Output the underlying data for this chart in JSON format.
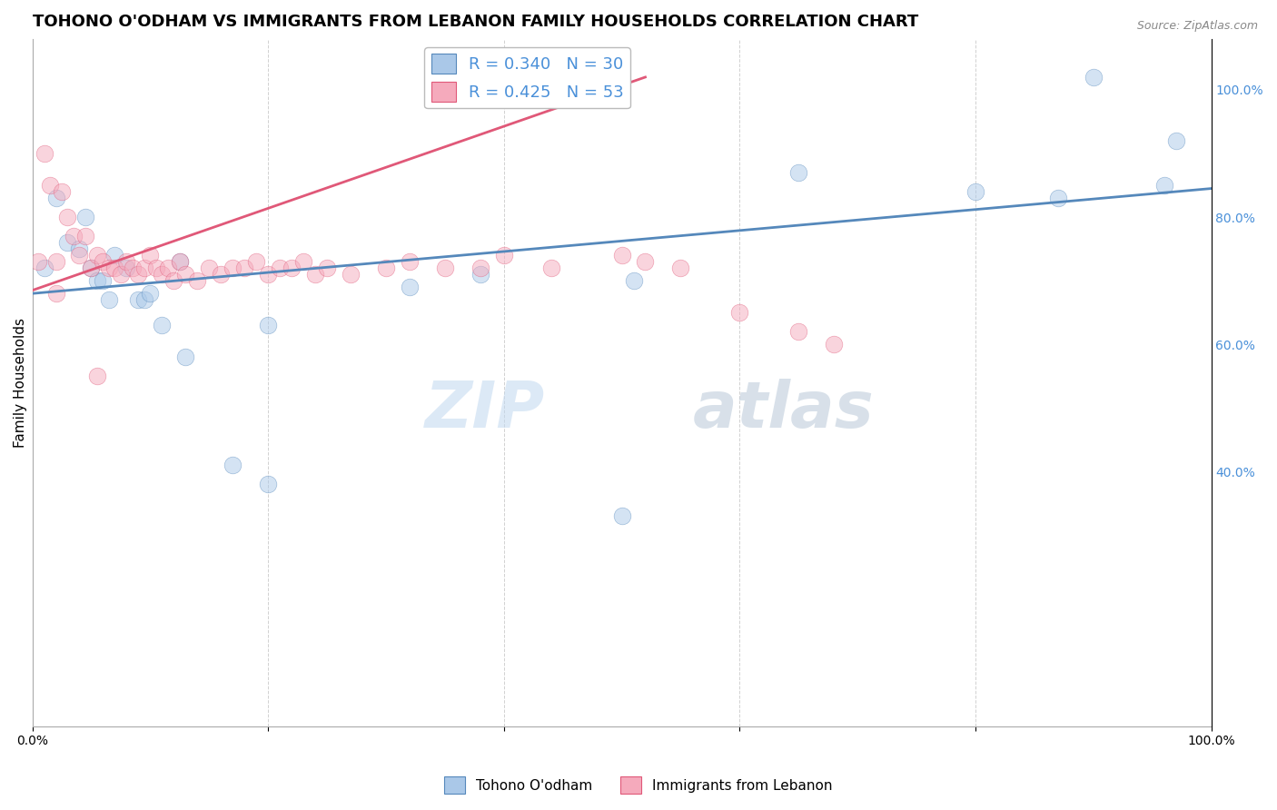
{
  "title": "TOHONO O'ODHAM VS IMMIGRANTS FROM LEBANON FAMILY HOUSEHOLDS CORRELATION CHART",
  "source": "Source: ZipAtlas.com",
  "ylabel": "Family Households",
  "legend_blue_r": "R = 0.340",
  "legend_blue_n": "N = 30",
  "legend_pink_r": "R = 0.425",
  "legend_pink_n": "N = 53",
  "watermark_zip": "ZIP",
  "watermark_atlas": "atlas",
  "label_blue": "Tohono O'odham",
  "label_pink": "Immigrants from Lebanon",
  "xlim": [
    0.0,
    1.0
  ],
  "ylim": [
    0.0,
    1.08
  ],
  "xtick_labels": [
    "0.0%",
    "",
    "",
    "",
    "",
    "100.0%"
  ],
  "ytick_right_vals": [
    0.4,
    0.6,
    0.8,
    1.0
  ],
  "ytick_right_labels": [
    "40.0%",
    "60.0%",
    "80.0%",
    "100.0%"
  ],
  "blue_scatter_x": [
    0.01,
    0.02,
    0.03,
    0.04,
    0.045,
    0.05,
    0.055,
    0.06,
    0.065,
    0.07,
    0.08,
    0.09,
    0.095,
    0.1,
    0.11,
    0.125,
    0.13,
    0.17,
    0.2,
    0.32,
    0.38,
    0.51,
    0.65,
    0.8,
    0.87,
    0.9,
    0.96,
    0.97,
    0.2,
    0.5
  ],
  "blue_scatter_y": [
    0.72,
    0.83,
    0.76,
    0.75,
    0.8,
    0.72,
    0.7,
    0.7,
    0.67,
    0.74,
    0.72,
    0.67,
    0.67,
    0.68,
    0.63,
    0.73,
    0.58,
    0.41,
    0.63,
    0.69,
    0.71,
    0.7,
    0.87,
    0.84,
    0.83,
    1.02,
    0.85,
    0.92,
    0.38,
    0.33
  ],
  "pink_scatter_x": [
    0.005,
    0.01,
    0.015,
    0.02,
    0.025,
    0.03,
    0.035,
    0.04,
    0.045,
    0.05,
    0.055,
    0.06,
    0.065,
    0.07,
    0.075,
    0.08,
    0.085,
    0.09,
    0.095,
    0.1,
    0.105,
    0.11,
    0.115,
    0.12,
    0.125,
    0.13,
    0.14,
    0.15,
    0.16,
    0.17,
    0.18,
    0.19,
    0.2,
    0.21,
    0.22,
    0.23,
    0.24,
    0.25,
    0.27,
    0.3,
    0.32,
    0.35,
    0.38,
    0.4,
    0.44,
    0.5,
    0.52,
    0.55,
    0.6,
    0.65,
    0.68,
    0.02,
    0.055
  ],
  "pink_scatter_y": [
    0.73,
    0.9,
    0.85,
    0.73,
    0.84,
    0.8,
    0.77,
    0.74,
    0.77,
    0.72,
    0.74,
    0.73,
    0.72,
    0.72,
    0.71,
    0.73,
    0.72,
    0.71,
    0.72,
    0.74,
    0.72,
    0.71,
    0.72,
    0.7,
    0.73,
    0.71,
    0.7,
    0.72,
    0.71,
    0.72,
    0.72,
    0.73,
    0.71,
    0.72,
    0.72,
    0.73,
    0.71,
    0.72,
    0.71,
    0.72,
    0.73,
    0.72,
    0.72,
    0.74,
    0.72,
    0.74,
    0.73,
    0.72,
    0.65,
    0.62,
    0.6,
    0.68,
    0.55
  ],
  "blue_line_x": [
    0.0,
    1.0
  ],
  "blue_line_y": [
    0.68,
    0.845
  ],
  "pink_line_x": [
    0.0,
    0.52
  ],
  "pink_line_y": [
    0.685,
    1.02
  ],
  "scatter_size": 180,
  "scatter_alpha": 0.5,
  "blue_color": "#aac8e8",
  "blue_line_color": "#5588bb",
  "pink_color": "#f5aabc",
  "pink_line_color": "#e05878",
  "grid_color": "#cccccc",
  "background_color": "#ffffff",
  "title_fontsize": 13,
  "axis_label_fontsize": 11,
  "tick_fontsize": 10,
  "legend_fontsize": 13,
  "watermark_zip_fontsize": 52,
  "watermark_atlas_fontsize": 52,
  "watermark_color_zip": "#c0d8f0",
  "watermark_color_atlas": "#b8c8d8",
  "watermark_alpha": 0.55
}
